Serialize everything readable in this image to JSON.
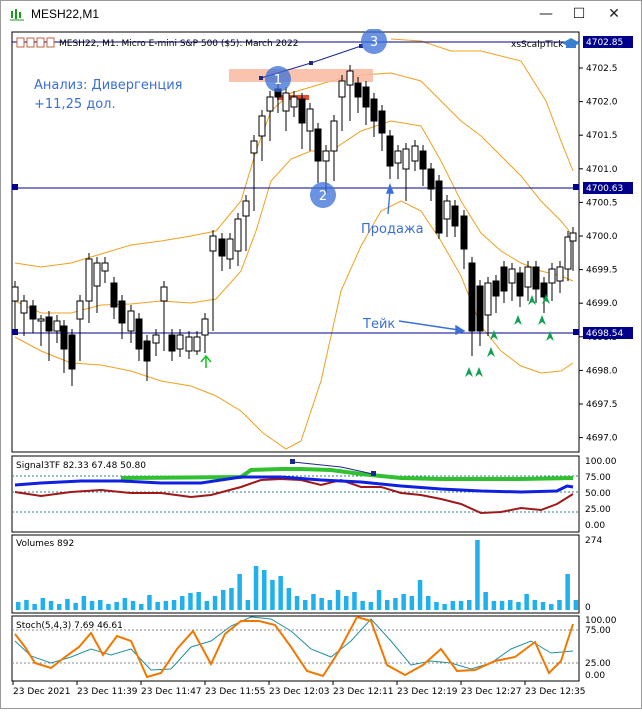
{
  "window": {
    "title": "MESH22,M1",
    "minimize": "—",
    "maximize": "☐",
    "close": "✕"
  },
  "main_panel": {
    "header": "MESH22, M1:  Micro E-mini S&P 500 ($5): March 2022",
    "expert_label": "xsScalpTick",
    "annotation_analysis": "Анализ: Дивергенция",
    "annotation_profit": "+11,25 дол.",
    "label_sell": "Продажа",
    "label_take": "Тейк",
    "markers": [
      "1",
      "2",
      "3"
    ],
    "price_ticks": [
      "4702.5",
      "4702.0",
      "4701.5",
      "4701.0",
      "4700.5",
      "4700.0",
      "4699.5",
      "4699.0",
      "4698.5",
      "4698.0",
      "4697.5",
      "4697.0"
    ],
    "price_tag_top": "4702.85",
    "price_tag_mid": "4700.63",
    "price_tag_low": "4698.54"
  },
  "signal_panel": {
    "header": "Signal3TF 82.33 67.48 50.80",
    "ticks": [
      "100.00",
      "75.00",
      "50.00",
      "25.00",
      "0.00"
    ]
  },
  "volume_panel": {
    "header": "Volumes 892",
    "tick_max": "274",
    "tick_min": "0"
  },
  "stoch_panel": {
    "header": "Stoch(5,4,3) 7.69 46.61",
    "ticks": [
      "100.00",
      "75.00",
      "25.00",
      "0.00"
    ]
  },
  "time_axis": [
    "23 Dec 2021",
    "23 Dec 11:39",
    "23 Dec 11:47",
    "23 Dec 11:55",
    "23 Dec 12:03",
    "23 Dec 12:11",
    "23 Dec 12:19",
    "23 Dec 12:27",
    "23 Dec 12:35"
  ],
  "colors": {
    "bands": "#f0a020",
    "level_line": "#00008b",
    "annotation": "#3a6fd8",
    "bull_arrow": "#10c020",
    "volume_bar": "#20b0ee",
    "signal_green": "#30c030",
    "signal_blue": "#1020e0",
    "signal_red": "#a01818",
    "stoch_main": "#f07800",
    "stoch_signal": "#2090a0"
  }
}
